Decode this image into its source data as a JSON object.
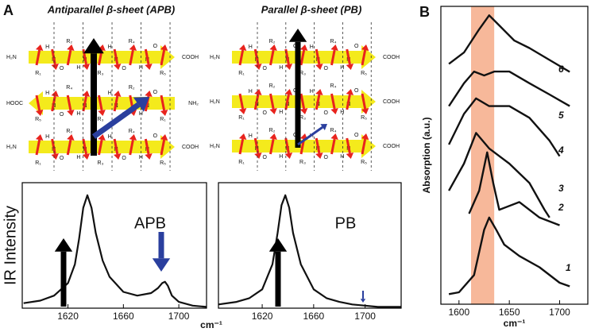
{
  "panel_labels": [
    "A",
    "B"
  ],
  "sheets": [
    {
      "title": "Antiparallel β-sheet (APB)",
      "strands": [
        {
          "left": "H₂N",
          "right": "COOH",
          "r": [
            "R₁",
            "R₂",
            "R₃",
            "R₄",
            "R₅"
          ],
          "n": [
            "N",
            "N",
            "N",
            "N"
          ],
          "h": [
            "H",
            "H",
            "H",
            "H"
          ],
          "o": [
            "O",
            "O",
            "O",
            "O"
          ]
        },
        {
          "left": "HOOC",
          "right": "NH₂",
          "r": [
            "R₅",
            "R₄",
            "R₃",
            "R₂",
            "R₁"
          ],
          "n": [
            "N",
            "N",
            "N",
            "N"
          ],
          "h": [
            "H",
            "H",
            "H",
            "H"
          ],
          "o": [
            "O",
            "O",
            "O",
            "O"
          ]
        },
        {
          "left": "H₂N",
          "right": "COOH",
          "r": [
            "R₁",
            "R₂",
            "R₃",
            "R₄",
            "R₅"
          ],
          "n": [
            "N",
            "N",
            "N",
            "N"
          ],
          "h": [
            "H",
            "H",
            "H",
            "H"
          ],
          "o": [
            "O",
            "O",
            "O",
            "O"
          ]
        }
      ]
    },
    {
      "title": "Parallel β-sheet (PB)",
      "strands": [
        {
          "left": "H₂N",
          "right": "COOH",
          "r": [
            "R₁",
            "R₂",
            "R₃",
            "R₄",
            "R₅"
          ],
          "n": [
            "N",
            "N",
            "N",
            "N"
          ],
          "h": [
            "H",
            "H",
            "H",
            "H"
          ],
          "o": [
            "O",
            "O",
            "O",
            "O"
          ]
        },
        {
          "left": "H₂N",
          "right": "COOH",
          "r": [
            "R₁",
            "R₂",
            "R₃",
            "R₄",
            "R₅"
          ],
          "n": [
            "N",
            "N",
            "N",
            "N"
          ],
          "h": [
            "H",
            "H",
            "H",
            "H"
          ],
          "o": [
            "O",
            "O",
            "O",
            "O"
          ]
        },
        {
          "left": "H₂N",
          "right": "COOH",
          "r": [
            "R₁",
            "R₂",
            "R₃",
            "R₄",
            "R₅"
          ],
          "n": [
            "N",
            "N",
            "N",
            "N"
          ],
          "h": [
            "H",
            "H",
            "H",
            "H"
          ],
          "o": [
            "O",
            "O",
            "O",
            "O"
          ]
        }
      ]
    }
  ],
  "chart_data": [
    {
      "type": "line",
      "annotation": "APB",
      "ylabel": "IR Intensity",
      "xlabel": "cm⁻¹",
      "color": "#111111",
      "x": [
        1588,
        1600,
        1610,
        1620,
        1625,
        1628,
        1631,
        1634,
        1637,
        1640,
        1645,
        1650,
        1660,
        1670,
        1680,
        1685,
        1688,
        1690,
        1692,
        1695,
        1700,
        1710,
        1720
      ],
      "values": [
        0.04,
        0.06,
        0.1,
        0.2,
        0.35,
        0.55,
        0.8,
        0.9,
        0.8,
        0.6,
        0.38,
        0.25,
        0.13,
        0.1,
        0.12,
        0.16,
        0.2,
        0.21,
        0.18,
        0.1,
        0.05,
        0.02,
        0.01
      ],
      "xlim": [
        1587,
        1720
      ],
      "xticks": [
        1620,
        1660,
        1700
      ],
      "ylim": [
        0,
        1
      ]
    },
    {
      "type": "line",
      "annotation": "PB",
      "color": "#111111",
      "x": [
        1586,
        1600,
        1610,
        1620,
        1628,
        1632,
        1635,
        1638,
        1641,
        1644,
        1650,
        1660,
        1670,
        1680,
        1690,
        1700,
        1710,
        1728
      ],
      "values": [
        0.03,
        0.05,
        0.08,
        0.15,
        0.35,
        0.6,
        0.82,
        0.9,
        0.8,
        0.6,
        0.35,
        0.15,
        0.08,
        0.05,
        0.03,
        0.02,
        0.01,
        0.01
      ],
      "xlim": [
        1586,
        1728
      ],
      "xticks": [
        1620,
        1660,
        1700
      ],
      "ylim": [
        0,
        1
      ]
    },
    {
      "type": "multiline",
      "ylabel": "Absorption (a.u.)",
      "xlabel": "cm⁻¹",
      "highlight": [
        1612,
        1635
      ],
      "highlight_color": "#f7b89a",
      "xlim": [
        1582,
        1728
      ],
      "xticks": [
        1600,
        1650,
        1700
      ],
      "ylim": [
        0,
        10
      ],
      "series": [
        {
          "name": "1",
          "color": "#111111",
          "x": [
            1590,
            1600,
            1615,
            1625,
            1630,
            1637,
            1645,
            1660,
            1680,
            1700,
            1710
          ],
          "values": [
            0.34,
            0.4,
            0.98,
            2.5,
            2.91,
            2.5,
            2.0,
            1.62,
            1.24,
            0.72,
            0.6
          ]
        },
        {
          "name": "2",
          "color": "#111111",
          "x": [
            1610,
            1620,
            1628,
            1634,
            1640,
            1660,
            1680,
            1700
          ],
          "values": [
            3.04,
            3.81,
            5.1,
            4.07,
            3.17,
            3.43,
            2.91,
            2.65
          ]
        },
        {
          "name": "3",
          "color": "#111111",
          "x": [
            1590,
            1605,
            1617,
            1630,
            1650,
            1670,
            1685,
            1690
          ],
          "values": [
            3.81,
            4.72,
            5.75,
            5.23,
            4.72,
            4.07,
            3.17,
            2.91
          ]
        },
        {
          "name": "4",
          "color": "#111111",
          "x": [
            1590,
            1605,
            1617,
            1630,
            1650,
            1670,
            1690,
            1700
          ],
          "values": [
            5.36,
            6.39,
            6.91,
            6.65,
            6.65,
            6.26,
            5.49,
            4.97
          ]
        },
        {
          "name": "5",
          "color": "#111111",
          "x": [
            1590,
            1605,
            1615,
            1625,
            1635,
            1650,
            1670,
            1690,
            1710
          ],
          "values": [
            6.65,
            7.42,
            7.81,
            7.68,
            7.81,
            7.81,
            7.42,
            7.04,
            6.65
          ]
        },
        {
          "name": "6",
          "color": "#111111",
          "x": [
            1590,
            1605,
            1620,
            1630,
            1640,
            1655,
            1670,
            1690,
            1710
          ],
          "values": [
            8.07,
            8.45,
            9.23,
            9.7,
            9.36,
            8.85,
            8.6,
            8.2,
            7.8
          ]
        }
      ]
    }
  ]
}
